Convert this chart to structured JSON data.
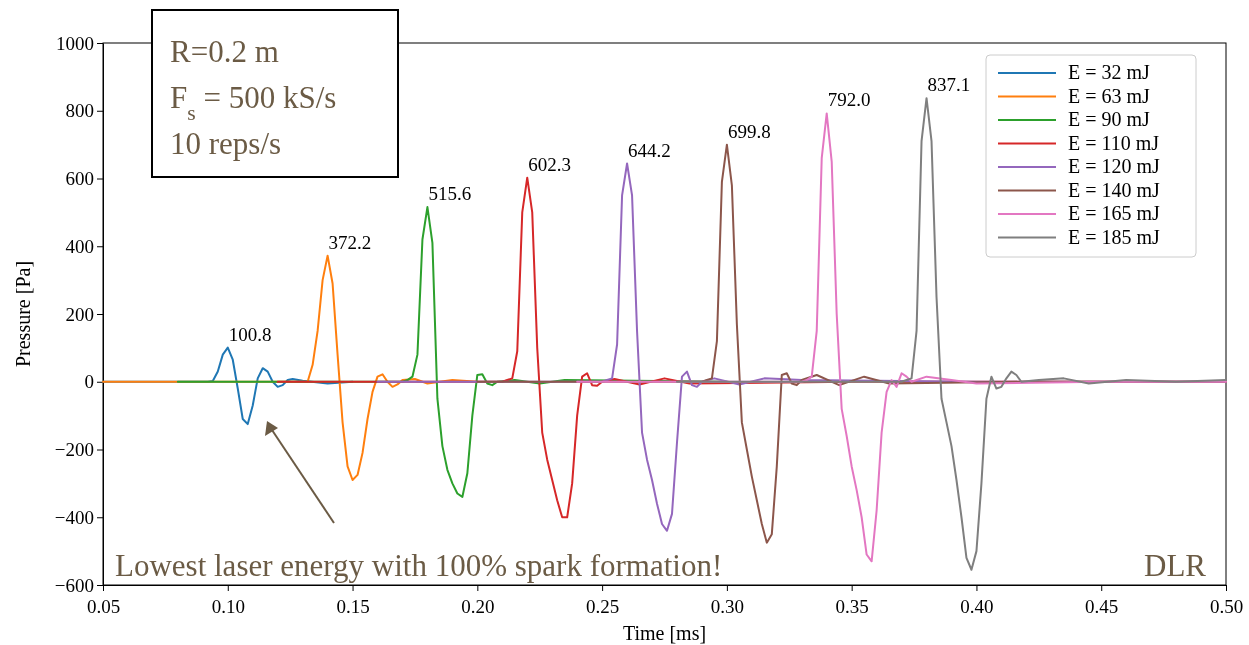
{
  "chart_data": {
    "type": "line",
    "xlabel": "Time [ms]",
    "ylabel": "Pressure [Pa]",
    "xlim": [
      0.05,
      0.5
    ],
    "ylim": [
      -600,
      1000
    ],
    "xticks": [
      0.05,
      {
        "value": 0.1,
        "label": "0.10"
      },
      0.15,
      {
        "value": 0.2,
        "label": "0.20"
      },
      0.25,
      {
        "value": 0.3,
        "label": "0.30"
      },
      0.35,
      {
        "value": 0.4,
        "label": "0.40"
      },
      0.45,
      {
        "value": 0.5,
        "label": "0.50"
      }
    ],
    "yticks": [
      {
        "value": -600,
        "label": "−600"
      },
      {
        "value": -400,
        "label": "−400"
      },
      {
        "value": -200,
        "label": "−200"
      },
      0,
      200,
      400,
      600,
      800,
      1000
    ],
    "grid": false,
    "legend": "top right",
    "line_style": "solid",
    "marker": "none",
    "series": [
      {
        "name": "E = 32 mJ",
        "color": "#1f77b4",
        "x": [
          0.05,
          0.09,
          0.092,
          0.094,
          0.096,
          0.098,
          0.1,
          0.102,
          0.104,
          0.106,
          0.108,
          0.11,
          0.112,
          0.114,
          0.116,
          0.118,
          0.12,
          0.122,
          0.124,
          0.126,
          0.13,
          0.14,
          0.15
        ],
        "values": [
          0,
          0,
          0,
          2,
          30,
          80,
          100.8,
          65,
          -20,
          -110,
          -125,
          -70,
          10,
          40,
          30,
          0,
          -15,
          -10,
          5,
          8,
          3,
          -5,
          0
        ]
      },
      {
        "name": "E = 63 mJ",
        "color": "#ff7f0e",
        "x": [
          0.05,
          0.13,
          0.132,
          0.134,
          0.136,
          0.138,
          0.14,
          0.142,
          0.144,
          0.146,
          0.148,
          0.15,
          0.152,
          0.154,
          0.156,
          0.158,
          0.16,
          0.162,
          0.164,
          0.166,
          0.168,
          0.17,
          0.175,
          0.18,
          0.19,
          0.2
        ],
        "values": [
          0,
          0,
          0,
          50,
          150,
          300,
          372.2,
          290,
          80,
          -120,
          -250,
          -290,
          -275,
          -210,
          -110,
          -30,
          15,
          22,
          0,
          -15,
          -8,
          5,
          8,
          -5,
          5,
          0
        ]
      },
      {
        "name": "E = 90 mJ",
        "color": "#2ca02c",
        "x": [
          0.08,
          0.17,
          0.172,
          0.174,
          0.176,
          0.178,
          0.18,
          0.182,
          0.184,
          0.186,
          0.188,
          0.19,
          0.192,
          0.194,
          0.196,
          0.198,
          0.2,
          0.202,
          0.204,
          0.206,
          0.208,
          0.215,
          0.225,
          0.235,
          0.3
        ],
        "values": [
          0,
          0,
          5,
          15,
          80,
          420,
          515.6,
          410,
          -50,
          -190,
          -260,
          -300,
          -330,
          -340,
          -270,
          -100,
          20,
          22,
          -5,
          -10,
          0,
          5,
          -5,
          5,
          0
        ]
      },
      {
        "name": "E = 110 mJ",
        "color": "#d62728",
        "x": [
          0.12,
          0.21,
          0.212,
          0.214,
          0.216,
          0.218,
          0.22,
          0.222,
          0.224,
          0.226,
          0.228,
          0.23,
          0.232,
          0.234,
          0.236,
          0.238,
          0.24,
          0.242,
          0.244,
          0.246,
          0.248,
          0.25,
          0.255,
          0.265,
          0.275,
          0.285,
          0.35,
          0.4,
          0.5
        ],
        "values": [
          0,
          0,
          5,
          10,
          90,
          500,
          602.3,
          500,
          100,
          -150,
          -230,
          -290,
          -350,
          -400,
          -400,
          -300,
          -100,
          15,
          25,
          -10,
          -12,
          0,
          8,
          -8,
          10,
          -5,
          0,
          0,
          0
        ]
      },
      {
        "name": "E = 120 mJ",
        "color": "#9467bd",
        "x": [
          0.16,
          0.25,
          0.252,
          0.254,
          0.256,
          0.258,
          0.26,
          0.262,
          0.264,
          0.266,
          0.268,
          0.27,
          0.272,
          0.274,
          0.276,
          0.278,
          0.28,
          0.282,
          0.284,
          0.286,
          0.288,
          0.29,
          0.295,
          0.305,
          0.315,
          0.33,
          0.4,
          0.5
        ],
        "values": [
          0,
          0,
          5,
          10,
          110,
          550,
          644.2,
          550,
          150,
          -150,
          -230,
          -290,
          -360,
          -420,
          -440,
          -390,
          -180,
          15,
          30,
          -10,
          -15,
          0,
          10,
          -8,
          10,
          5,
          0,
          0
        ]
      },
      {
        "name": "E = 140 mJ",
        "color": "#8c564b",
        "x": [
          0.2,
          0.29,
          0.292,
          0.294,
          0.296,
          0.298,
          0.3,
          0.302,
          0.304,
          0.306,
          0.308,
          0.31,
          0.312,
          0.314,
          0.316,
          0.318,
          0.32,
          0.322,
          0.324,
          0.326,
          0.328,
          0.33,
          0.336,
          0.345,
          0.355,
          0.365,
          0.42,
          0.5
        ],
        "values": [
          0,
          0,
          5,
          10,
          120,
          590,
          699.8,
          580,
          170,
          -120,
          -200,
          -280,
          -350,
          -420,
          -475,
          -450,
          -250,
          20,
          25,
          -5,
          -10,
          5,
          20,
          -10,
          15,
          -5,
          0,
          0
        ]
      },
      {
        "name": "E = 165 mJ",
        "color": "#e377c2",
        "x": [
          0.24,
          0.33,
          0.332,
          0.334,
          0.336,
          0.338,
          0.34,
          0.342,
          0.344,
          0.346,
          0.348,
          0.35,
          0.352,
          0.354,
          0.356,
          0.358,
          0.36,
          0.362,
          0.364,
          0.366,
          0.368,
          0.37,
          0.372,
          0.374,
          0.38,
          0.39,
          0.4,
          0.45,
          0.5
        ],
        "values": [
          0,
          0,
          5,
          15,
          150,
          660,
          792.0,
          650,
          200,
          -80,
          -160,
          -250,
          -320,
          -400,
          -510,
          -530,
          -380,
          -150,
          -30,
          5,
          -15,
          25,
          15,
          0,
          15,
          5,
          -5,
          0,
          0
        ]
      },
      {
        "name": "E = 185 mJ",
        "color": "#7f7f7f",
        "x": [
          0.28,
          0.37,
          0.372,
          0.374,
          0.376,
          0.378,
          0.38,
          0.382,
          0.384,
          0.386,
          0.388,
          0.39,
          0.392,
          0.394,
          0.396,
          0.398,
          0.4,
          0.402,
          0.404,
          0.406,
          0.408,
          0.41,
          0.412,
          0.414,
          0.416,
          0.418,
          0.425,
          0.435,
          0.445,
          0.46,
          0.48,
          0.5
        ],
        "values": [
          0,
          0,
          5,
          10,
          150,
          710,
          837.1,
          710,
          250,
          -50,
          -120,
          -190,
          -290,
          -400,
          -520,
          -555,
          -500,
          -300,
          -50,
          15,
          -20,
          -15,
          10,
          30,
          20,
          0,
          5,
          10,
          -5,
          5,
          0,
          5
        ]
      }
    ],
    "annotations": [
      "R=0.2 m",
      "F$_{s}$ = 500 kS/s",
      "10 reps/s",
      "Lowest laser energy with 100% spark formation!",
      "DLR",
      {
        "text": "100.8",
        "x": 0.1,
        "y": 100.8
      },
      {
        "text": "372.2",
        "x": 0.14,
        "y": 372.2
      },
      {
        "text": "515.6",
        "x": 0.18,
        "y": 515.6
      },
      {
        "text": "602.3",
        "x": 0.22,
        "y": 602.3
      },
      {
        "text": "644.2",
        "x": 0.26,
        "y": 644.2
      },
      {
        "text": "699.8",
        "x": 0.3,
        "y": 699.8
      },
      {
        "text": "792.0",
        "x": 0.34,
        "y": 792.0
      },
      {
        "text": "837.1",
        "x": 0.38,
        "y": 837.1
      }
    ]
  }
}
